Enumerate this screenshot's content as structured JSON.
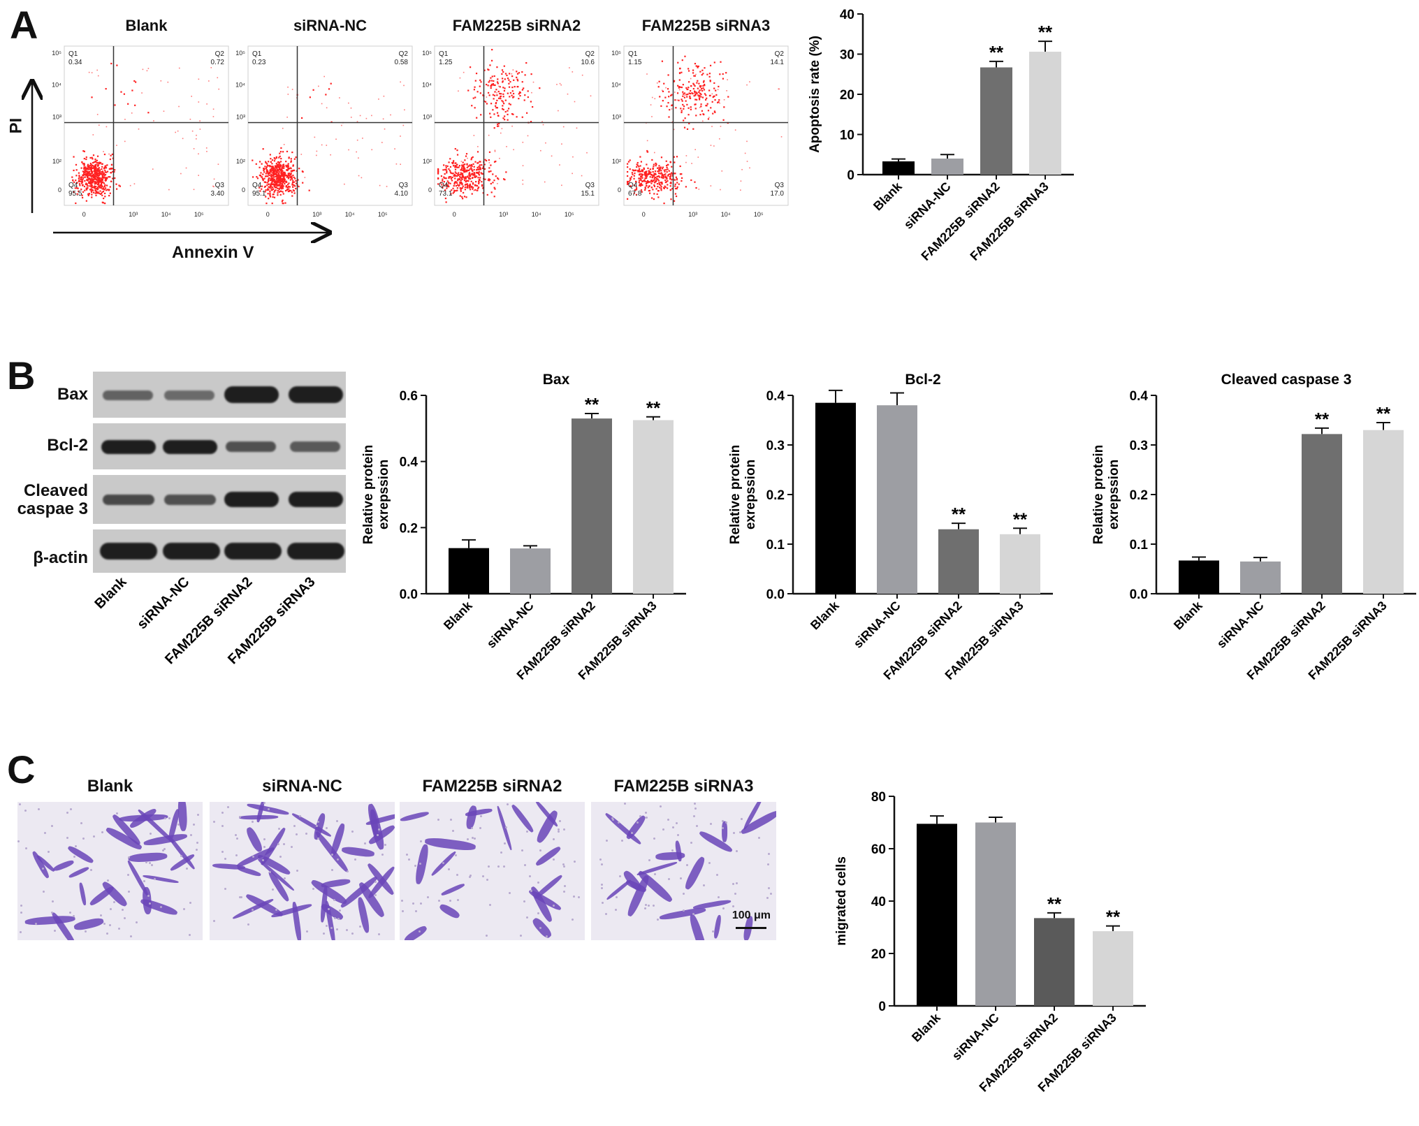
{
  "panels": {
    "a": {
      "label": "A",
      "flow_titles": [
        "Blank",
        "siRNA-NC",
        "FAM225B siRNA2",
        "FAM225B siRNA3"
      ],
      "y_axis_label": "PI",
      "x_axis_label": "Annexin V",
      "quadrants": [
        {
          "q1": "0.34",
          "q2": "0.72",
          "q3": "3.40",
          "q4": "95.5"
        },
        {
          "q1": "0.23",
          "q2": "0.58",
          "q3": "4.10",
          "q4": "95.1"
        },
        {
          "q1": "1.25",
          "q2": "10.6",
          "q3": "15.1",
          "q4": "73.1"
        },
        {
          "q1": "1.15",
          "q2": "14.1",
          "q3": "17.0",
          "q4": "67.8"
        }
      ],
      "quadrant_names": {
        "q1": "Q1",
        "q2": "Q2",
        "q3": "Q3",
        "q4": "Q4"
      },
      "x_ticks": [
        "0",
        "10³",
        "10⁴",
        "10⁵"
      ],
      "y_ticks": [
        "10⁵",
        "10⁴",
        "10³",
        "10²",
        "0"
      ]
    },
    "b": {
      "label": "B",
      "blot_rows": [
        "Bax",
        "Bcl-2",
        "Cleaved\ncaspae 3",
        "β-actin"
      ],
      "blot_lanes": [
        "Blank",
        "siRNA-NC",
        "FAM225B siRNA2",
        "FAM225B siRNA3"
      ]
    },
    "c": {
      "label": "C",
      "image_titles": [
        "Blank",
        "siRNA-NC",
        "FAM225B siRNA2",
        "FAM225B siRNA3"
      ],
      "scale_bar": "100 μm"
    }
  },
  "colors": {
    "blank": "#000000",
    "sirna_nc": "#9d9ea3",
    "sirna2": "#6f6f6f",
    "sirna3": "#d6d6d6",
    "sirna2_c": "#5a5a5a",
    "flow_dots": "#ff2020",
    "crystal_violet": "#6a45b8"
  },
  "chart_data": [
    {
      "id": "apoptosis",
      "type": "bar",
      "categories": [
        "Blank",
        "siRNA-NC",
        "FAM225B siRNA2",
        "FAM225B siRNA3"
      ],
      "values": [
        3.3,
        4.0,
        26.7,
        30.6
      ],
      "errors": [
        0.6,
        1.0,
        1.5,
        2.6
      ],
      "significance": [
        "",
        "",
        "**",
        "**"
      ],
      "title": "",
      "ylabel": "Apoptosis rate (%)",
      "ylim": [
        0,
        40
      ],
      "yticks": [
        0,
        10,
        20,
        30,
        40
      ],
      "bar_colors": [
        "#000000",
        "#9d9ea3",
        "#6f6f6f",
        "#d6d6d6"
      ]
    },
    {
      "id": "bax",
      "type": "bar",
      "categories": [
        "Blank",
        "siRNA-NC",
        "FAM225B siRNA2",
        "FAM225B siRNA3"
      ],
      "values": [
        0.138,
        0.137,
        0.53,
        0.525
      ],
      "errors": [
        0.025,
        0.008,
        0.015,
        0.01
      ],
      "significance": [
        "",
        "",
        "**",
        "**"
      ],
      "title": "Bax",
      "ylabel": "Relative protein\nexrepssion",
      "ylim": [
        0,
        0.6
      ],
      "yticks": [
        0.0,
        0.2,
        0.4,
        0.6
      ],
      "bar_colors": [
        "#000000",
        "#9d9ea3",
        "#6f6f6f",
        "#d6d6d6"
      ]
    },
    {
      "id": "bcl2",
      "type": "bar",
      "categories": [
        "Blank",
        "siRNA-NC",
        "FAM225B siRNA2",
        "FAM225B siRNA3"
      ],
      "values": [
        0.385,
        0.38,
        0.13,
        0.12
      ],
      "errors": [
        0.025,
        0.025,
        0.012,
        0.012
      ],
      "significance": [
        "",
        "",
        "**",
        "**"
      ],
      "title": "Bcl-2",
      "ylabel": "Relative protein\nexrepssion",
      "ylim": [
        0,
        0.4
      ],
      "yticks": [
        0.0,
        0.1,
        0.2,
        0.3,
        0.4
      ],
      "bar_colors": [
        "#000000",
        "#9d9ea3",
        "#6f6f6f",
        "#d6d6d6"
      ]
    },
    {
      "id": "caspase3",
      "type": "bar",
      "categories": [
        "Blank",
        "siRNA-NC",
        "FAM225B siRNA2",
        "FAM225B siRNA3"
      ],
      "values": [
        0.067,
        0.065,
        0.322,
        0.33
      ],
      "errors": [
        0.007,
        0.008,
        0.012,
        0.015
      ],
      "significance": [
        "",
        "",
        "**",
        "**"
      ],
      "title": "Cleaved caspase 3",
      "ylabel": "Relative protein\nexrepssion",
      "ylim": [
        0,
        0.4
      ],
      "yticks": [
        0.0,
        0.1,
        0.2,
        0.3,
        0.4
      ],
      "bar_colors": [
        "#000000",
        "#9d9ea3",
        "#6f6f6f",
        "#d6d6d6"
      ]
    },
    {
      "id": "migration",
      "type": "bar",
      "categories": [
        "Blank",
        "siRNA-NC",
        "FAM225B siRNA2",
        "FAM225B siRNA3"
      ],
      "values": [
        69.5,
        70.0,
        33.5,
        28.5
      ],
      "errors": [
        3.0,
        2.0,
        2.0,
        2.0
      ],
      "significance": [
        "",
        "",
        "**",
        "**"
      ],
      "title": "",
      "ylabel": "migrated cells",
      "ylim": [
        0,
        80
      ],
      "yticks": [
        0,
        20,
        40,
        60,
        80
      ],
      "bar_colors": [
        "#000000",
        "#9d9ea3",
        "#5a5a5a",
        "#d6d6d6"
      ]
    }
  ]
}
